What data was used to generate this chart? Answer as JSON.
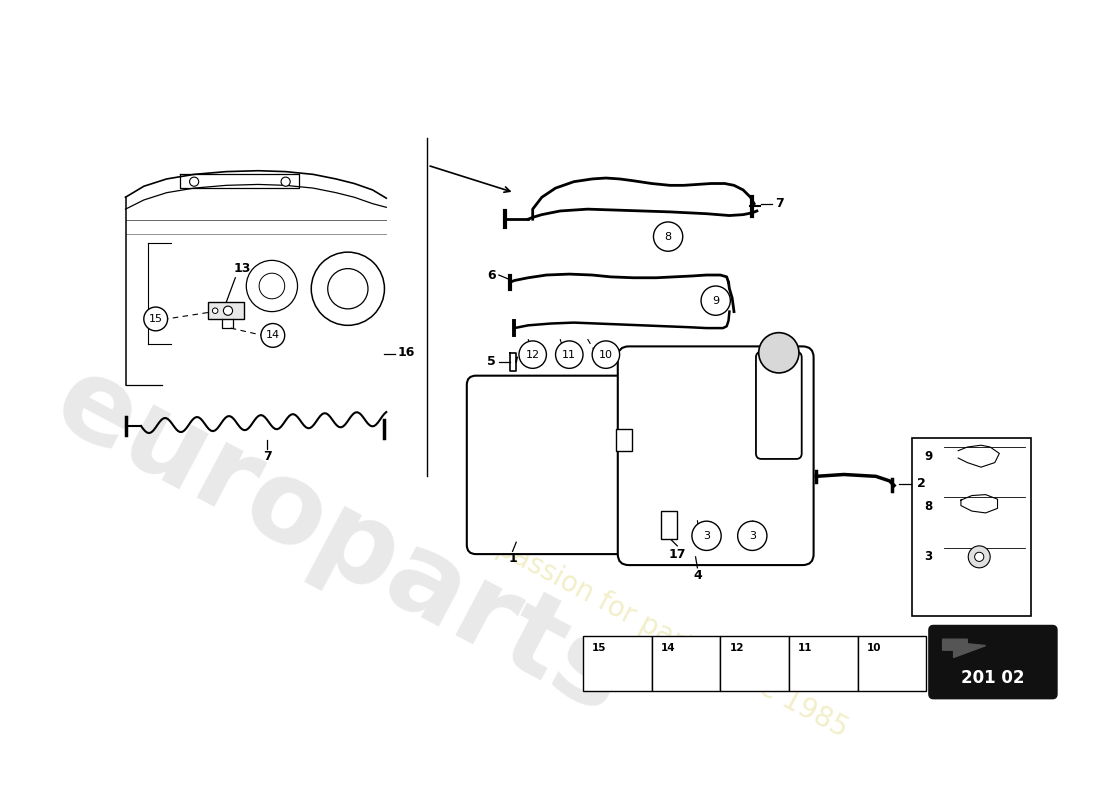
{
  "bg_color": "#ffffff",
  "part_number": "201 02",
  "watermark1": "europarts",
  "watermark2": "a passion for parts since 1985",
  "figsize": [
    11.0,
    8.0
  ],
  "dpi": 100
}
